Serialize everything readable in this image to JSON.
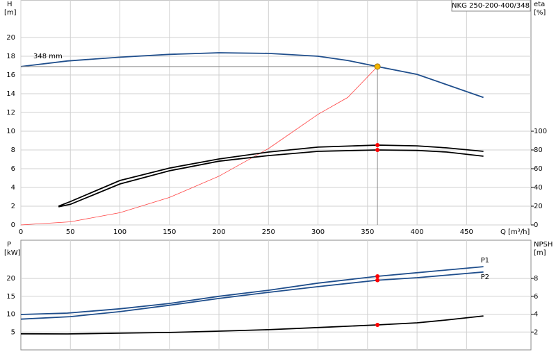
{
  "chart_data": [
    {
      "type": "line",
      "title": "NKG 250-200-400/348",
      "y_label": "H",
      "y_unit": "[m]",
      "y2_label": "eta",
      "y2_unit": "[%]",
      "x_label": "Q [m³/h]",
      "xlim": [
        0,
        515
      ],
      "xticks": [
        0,
        50,
        100,
        150,
        200,
        250,
        300,
        350,
        400,
        450
      ],
      "show_xtick_labels": true,
      "ylim": [
        0,
        24
      ],
      "yticks": [
        0,
        2,
        4,
        6,
        8,
        10,
        12,
        14,
        16,
        18,
        20
      ],
      "y2lim": [
        0,
        240
      ],
      "y2ticks": [
        0,
        20,
        40,
        60,
        80,
        100
      ],
      "grid": true,
      "series": [
        {
          "name": "348 mm",
          "color": "#1f4e8c",
          "x": [
            0,
            47,
            100,
            150,
            200,
            250,
            300,
            330,
            360,
            400,
            430,
            467
          ],
          "values": [
            16.9,
            17.5,
            17.9,
            18.2,
            18.37,
            18.3,
            18.0,
            17.55,
            16.9,
            16.07,
            14.96,
            13.6
          ]
        },
        {
          "color": "#ff4040",
          "x": [
            0,
            50,
            100,
            150,
            200,
            250,
            300,
            330,
            360
          ],
          "values": [
            0,
            0.33,
            1.3,
            2.93,
            5.2,
            8.15,
            11.8,
            13.6,
            16.9
          ]
        },
        {
          "color": "#000000",
          "axis": "y2",
          "x": [
            38,
            50,
            100,
            150,
            200,
            250,
            300,
            360,
            400,
            430,
            467
          ],
          "values": [
            20,
            25,
            47.4,
            60.7,
            70.4,
            77.8,
            83,
            85.2,
            84.4,
            82.2,
            78.5
          ]
        },
        {
          "color": "#000000",
          "axis": "y2",
          "x": [
            38,
            50,
            100,
            150,
            200,
            250,
            300,
            360,
            400,
            430,
            467
          ],
          "values": [
            19.3,
            22,
            43.7,
            57.8,
            68,
            74,
            78.5,
            80,
            79.5,
            77.8,
            73.3
          ]
        }
      ],
      "operating_points": [
        {
          "x": 360,
          "y": 16.9,
          "color": "#f5b800",
          "guides": true
        },
        {
          "x": 360,
          "y": 85.2,
          "color": "#ff0000",
          "axis": "y2"
        },
        {
          "x": 360,
          "y": 80,
          "color": "#ff0000",
          "axis": "y2"
        }
      ]
    },
    {
      "type": "line",
      "y_label": "P",
      "y_unit": "[kW]",
      "y2_label": "NPSH",
      "y2_unit": "[m]",
      "xlim": [
        0,
        515
      ],
      "xticks": [
        50,
        100,
        150,
        200,
        250,
        300,
        350,
        400,
        450
      ],
      "show_xtick_labels": false,
      "ylim": [
        0,
        30.7
      ],
      "yticks": [
        5,
        10,
        15,
        20
      ],
      "y2lim": [
        0,
        12.28
      ],
      "y2ticks": [
        2,
        4,
        6,
        8
      ],
      "grid": true,
      "series": [
        {
          "name": "P1",
          "color": "#1f4e8c",
          "x": [
            0,
            47,
            100,
            150,
            200,
            250,
            300,
            360,
            400,
            467
          ],
          "values": [
            9.9,
            10.3,
            11.5,
            13,
            15,
            16.7,
            18.7,
            20.6,
            21.6,
            23.3
          ]
        },
        {
          "name": "P2",
          "color": "#1f4e8c",
          "x": [
            0,
            50,
            100,
            150,
            200,
            250,
            300,
            360,
            400,
            467
          ],
          "values": [
            8.6,
            9.3,
            10.7,
            12.5,
            14.4,
            16.1,
            17.7,
            19.5,
            20.2,
            21.8
          ]
        },
        {
          "color": "#000000",
          "axis": "y2",
          "x": [
            0,
            47,
            100,
            150,
            200,
            250,
            300,
            360,
            400,
            430,
            467
          ],
          "values": [
            1.8,
            1.79,
            1.87,
            1.95,
            2.1,
            2.26,
            2.5,
            2.8,
            3.03,
            3.35,
            3.8
          ]
        }
      ],
      "operating_points": [
        {
          "x": 360,
          "y": 20.6,
          "color": "#ff0000"
        },
        {
          "x": 360,
          "y": 19.5,
          "color": "#ff0000"
        },
        {
          "x": 360,
          "y": 2.8,
          "color": "#ff0000",
          "axis": "y2"
        }
      ]
    }
  ]
}
